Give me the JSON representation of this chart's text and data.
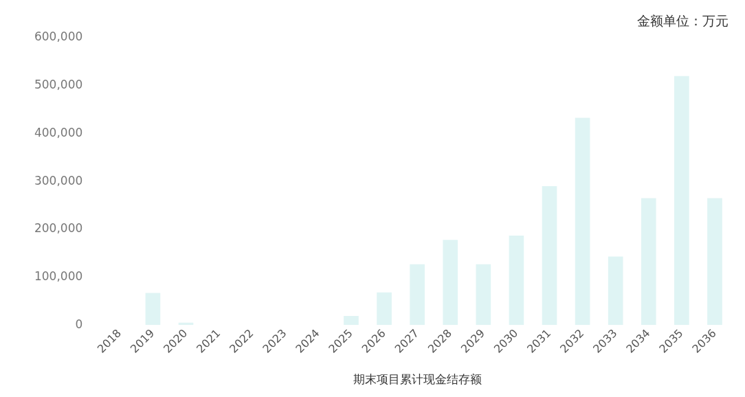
{
  "chart_data": {
    "type": "bar",
    "categories": [
      "2018",
      "2019",
      "2020",
      "2021",
      "2022",
      "2023",
      "2024",
      "2025",
      "2026",
      "2027",
      "2028",
      "2029",
      "2030",
      "2031",
      "2032",
      "2033",
      "2034",
      "2035",
      "2036"
    ],
    "values": [
      0,
      67000,
      5000,
      0,
      0,
      0,
      0,
      19000,
      68000,
      127000,
      178000,
      127000,
      187000,
      290000,
      433000,
      143000,
      265000,
      520000,
      265000
    ],
    "color": "#dff4f4",
    "ylim": [
      0,
      600000
    ],
    "yticks": [
      {
        "value": 0,
        "label": "0"
      },
      {
        "value": 100000,
        "label": "100,000"
      },
      {
        "value": 200000,
        "label": "200,000"
      },
      {
        "value": 300000,
        "label": "300,000"
      },
      {
        "value": 400000,
        "label": "400,000"
      },
      {
        "value": 500000,
        "label": "500,000"
      },
      {
        "value": 600000,
        "label": "600,000"
      }
    ],
    "xlabel": "期末项目累计现金结存额",
    "annotations": [
      "金额单位：万元"
    ],
    "grid": false,
    "legend": false
  }
}
